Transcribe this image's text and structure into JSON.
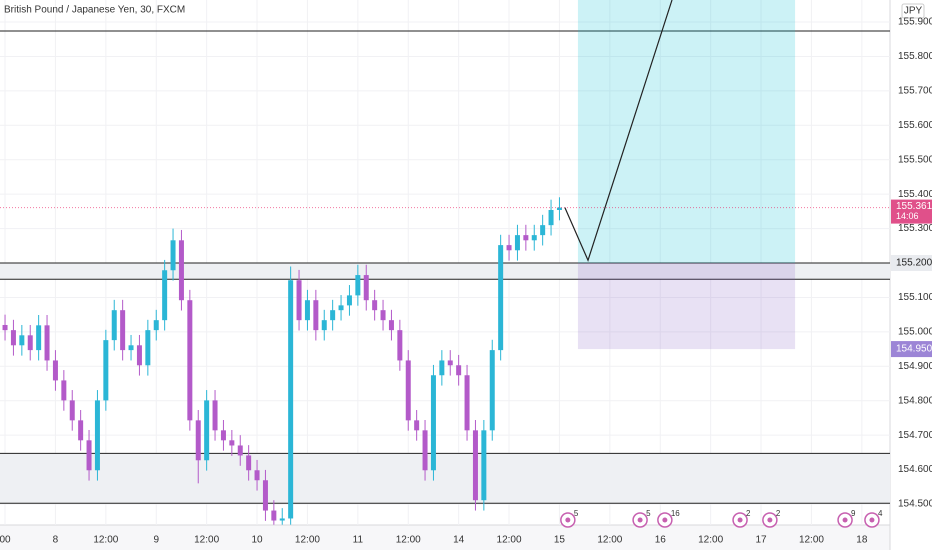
{
  "chart_data": {
    "type": "candlestick",
    "title": "British Pound / Japanese Yen, 30, FXCM",
    "currency": "JPY",
    "up_color": "#2bb6d6",
    "down_color": "#b35ac9",
    "grid": true,
    "xlim": [
      -1.2,
      210.7
    ],
    "ylim": [
      154.439,
      155.964
    ],
    "xticks": [
      {
        "value": 0,
        "label": "00"
      },
      {
        "value": 12,
        "label": "8"
      },
      {
        "value": 24,
        "label": "12:00"
      },
      {
        "value": 36,
        "label": "9"
      },
      {
        "value": 48,
        "label": "12:00"
      },
      {
        "value": 60,
        "label": "10"
      },
      {
        "value": 72,
        "label": "12:00"
      },
      {
        "value": 84,
        "label": "11"
      },
      {
        "value": 96,
        "label": "12:00"
      },
      {
        "value": 108,
        "label": "14"
      },
      {
        "value": 120,
        "label": "12:00"
      },
      {
        "value": 132,
        "label": "15"
      },
      {
        "value": 144,
        "label": "12:00"
      },
      {
        "value": 156,
        "label": "16"
      },
      {
        "value": 168,
        "label": "12:00"
      },
      {
        "value": 180,
        "label": "17"
      },
      {
        "value": 192,
        "label": "12:00"
      },
      {
        "value": 204,
        "label": "18"
      }
    ],
    "yticks": [
      {
        "value": 155.9,
        "label": "155.900"
      },
      {
        "value": 155.8,
        "label": "155.800"
      },
      {
        "value": 155.7,
        "label": "155.700"
      },
      {
        "value": 155.6,
        "label": "155.600"
      },
      {
        "value": 155.5,
        "label": "155.500"
      },
      {
        "value": 155.4,
        "label": "155.400"
      },
      {
        "value": 155.3,
        "label": "155.300"
      },
      {
        "value": 155.1,
        "label": "155.100"
      },
      {
        "value": 155.0,
        "label": "155.000"
      },
      {
        "value": 154.9,
        "label": "154.900"
      },
      {
        "value": 154.8,
        "label": "154.800"
      },
      {
        "value": 154.7,
        "label": "154.700"
      },
      {
        "value": 154.6,
        "label": "154.600"
      },
      {
        "value": 154.5,
        "label": "154.500"
      }
    ],
    "x": [
      0,
      2,
      4,
      6,
      8,
      10,
      12,
      14,
      16,
      18,
      20,
      22,
      24,
      26,
      28,
      30,
      32,
      34,
      36,
      38,
      40,
      42,
      44,
      46,
      48,
      50,
      52,
      54,
      56,
      58,
      60,
      62,
      64,
      66,
      68,
      70,
      72,
      74,
      76,
      78,
      80,
      82,
      84,
      86,
      88,
      90,
      92,
      94,
      96,
      98,
      100,
      102,
      104,
      106,
      108,
      110,
      112,
      114,
      116,
      118,
      120,
      122,
      124,
      126,
      128,
      130,
      132
    ],
    "open": [
      155.02,
      155.005,
      154.961,
      154.99,
      154.947,
      155.019,
      154.917,
      154.859,
      154.801,
      154.743,
      154.685,
      154.598,
      154.801,
      154.976,
      155.063,
      154.947,
      154.961,
      154.903,
      155.005,
      155.034,
      155.179,
      155.266,
      155.092,
      154.743,
      154.627,
      154.801,
      154.714,
      154.685,
      154.67,
      154.641,
      154.598,
      154.569,
      154.481,
      154.452,
      154.458,
      155.15,
      155.034,
      155.092,
      155.005,
      155.034,
      155.063,
      155.077,
      155.106,
      155.165,
      155.092,
      155.063,
      155.034,
      155.005,
      154.917,
      154.743,
      154.714,
      154.598,
      154.874,
      154.917,
      154.903,
      154.874,
      154.714,
      154.511,
      154.714,
      154.947,
      155.252,
      155.237,
      155.281,
      155.266,
      155.281,
      155.31,
      155.354
    ],
    "high": [
      155.05,
      155.035,
      155.02,
      155.02,
      155.049,
      155.049,
      154.947,
      154.889,
      154.831,
      154.773,
      154.715,
      154.831,
      155.006,
      155.093,
      155.093,
      154.991,
      154.991,
      155.035,
      155.064,
      155.209,
      155.3,
      155.296,
      155.122,
      154.773,
      154.831,
      154.831,
      154.744,
      154.715,
      154.7,
      154.671,
      154.628,
      154.599,
      154.511,
      154.488,
      155.19,
      155.18,
      155.122,
      155.122,
      155.064,
      155.093,
      155.107,
      155.136,
      155.195,
      155.195,
      155.122,
      155.093,
      155.064,
      155.035,
      154.947,
      154.773,
      154.744,
      154.904,
      154.947,
      154.947,
      154.933,
      154.904,
      154.744,
      154.744,
      154.977,
      155.282,
      155.282,
      155.311,
      155.311,
      155.311,
      155.34,
      155.384,
      155.391
    ],
    "low": [
      154.975,
      154.931,
      154.931,
      154.917,
      154.917,
      154.887,
      154.829,
      154.771,
      154.713,
      154.655,
      154.568,
      154.568,
      154.771,
      154.946,
      154.917,
      154.917,
      154.873,
      154.873,
      154.975,
      155.004,
      155.149,
      155.062,
      154.713,
      154.56,
      154.597,
      154.684,
      154.655,
      154.64,
      154.611,
      154.568,
      154.539,
      154.451,
      154.44,
      154.44,
      154.44,
      155.004,
      155.004,
      154.975,
      154.975,
      155.004,
      155.033,
      155.047,
      155.076,
      155.062,
      155.033,
      155.004,
      154.975,
      154.887,
      154.713,
      154.684,
      154.568,
      154.568,
      154.844,
      154.873,
      154.844,
      154.684,
      154.481,
      154.481,
      154.684,
      154.917,
      155.207,
      155.207,
      155.236,
      155.236,
      155.251,
      155.28,
      155.324
    ],
    "close": [
      155.005,
      154.961,
      154.99,
      154.947,
      155.019,
      154.917,
      154.859,
      154.801,
      154.743,
      154.685,
      154.598,
      154.801,
      154.976,
      155.063,
      154.947,
      154.961,
      154.903,
      155.005,
      155.034,
      155.179,
      155.266,
      155.092,
      154.743,
      154.627,
      154.801,
      154.714,
      154.685,
      154.67,
      154.641,
      154.598,
      154.569,
      154.481,
      154.452,
      154.458,
      155.15,
      155.034,
      155.092,
      155.005,
      155.034,
      155.063,
      155.077,
      155.106,
      155.165,
      155.092,
      155.063,
      155.034,
      155.005,
      154.917,
      154.743,
      154.714,
      154.598,
      154.874,
      154.917,
      154.903,
      154.874,
      154.714,
      154.511,
      154.714,
      154.947,
      155.252,
      155.237,
      155.281,
      155.266,
      155.281,
      155.31,
      155.354,
      155.361
    ],
    "levels": [
      155.874,
      155.2,
      155.153,
      154.647,
      154.502
    ],
    "zones": [
      [
        155.153,
        155.2
      ],
      [
        154.502,
        154.647
      ]
    ],
    "position": {
      "x": [
        136.4,
        188.1
      ],
      "target": 156.0,
      "entry": {
        "value": 155.2,
        "label": "155.200"
      },
      "stop": {
        "value": 154.95,
        "label": "154.950"
      }
    },
    "projection": {
      "x": [
        133.3,
        138.8,
        158.8
      ],
      "y": [
        155.361,
        155.208,
        155.964
      ]
    },
    "last_price": {
      "value": 155.361,
      "countdown": "14:06"
    },
    "events": [
      {
        "x": 134,
        "count": 5
      },
      {
        "x": 151.2,
        "count": 5
      },
      {
        "x": 157.1,
        "count": 16
      },
      {
        "x": 175,
        "count": 2
      },
      {
        "x": 182.1,
        "count": 2
      },
      {
        "x": 200,
        "count": 9
      },
      {
        "x": 206.4,
        "count": 4
      }
    ]
  }
}
